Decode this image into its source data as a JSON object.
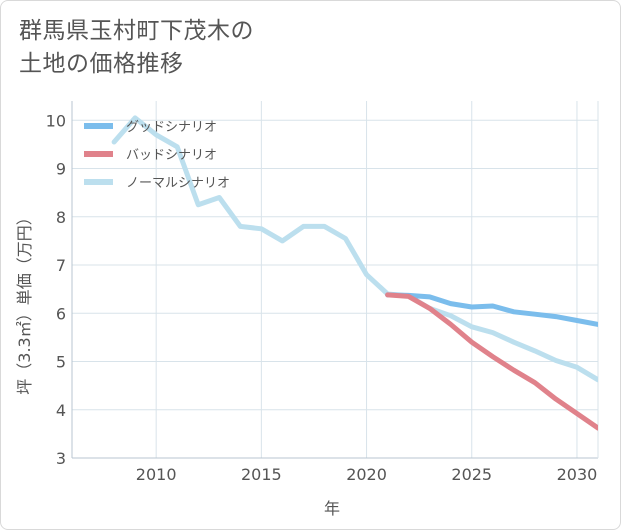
{
  "title_lines": [
    "群馬県玉村町下茂木の",
    "土地の価格推移"
  ],
  "chart_data": {
    "type": "line",
    "xlabel": "年",
    "ylabel": "坪（3.3㎡）単価（万円）",
    "xlim": [
      2006,
      2031
    ],
    "ylim": [
      3,
      10.4
    ],
    "x_ticks": [
      2010,
      2015,
      2020,
      2025,
      2030
    ],
    "y_ticks": [
      3,
      4,
      5,
      6,
      7,
      8,
      9,
      10
    ],
    "grid": true,
    "legend_position": "top-left",
    "series": [
      {
        "name": "グッドシナリオ",
        "color": "#7bbdec",
        "x": [
          2021,
          2022,
          2023,
          2024,
          2025,
          2026,
          2027,
          2028,
          2029,
          2030,
          2031
        ],
        "values": [
          6.38,
          6.37,
          6.34,
          6.2,
          6.13,
          6.15,
          6.03,
          5.98,
          5.93,
          5.85,
          5.77
        ]
      },
      {
        "name": "バッドシナリオ",
        "color": "#e0828b",
        "x": [
          2021,
          2022,
          2023,
          2024,
          2025,
          2026,
          2027,
          2028,
          2029,
          2030,
          2031
        ],
        "values": [
          6.38,
          6.35,
          6.1,
          5.77,
          5.4,
          5.1,
          4.82,
          4.56,
          4.22,
          3.92,
          3.62
        ]
      },
      {
        "name": "ノーマルシナリオ",
        "color": "#bcdfee",
        "x": [
          2008,
          2009,
          2010,
          2011,
          2012,
          2013,
          2014,
          2015,
          2016,
          2017,
          2018,
          2019,
          2020,
          2021,
          2022,
          2023,
          2024,
          2025,
          2026,
          2027,
          2028,
          2029,
          2030,
          2031
        ],
        "values": [
          9.55,
          10.05,
          9.7,
          9.45,
          8.25,
          8.4,
          7.8,
          7.75,
          7.5,
          7.8,
          7.8,
          7.55,
          6.8,
          6.4,
          6.36,
          6.1,
          5.95,
          5.72,
          5.6,
          5.4,
          5.22,
          5.02,
          4.88,
          4.62
        ]
      }
    ]
  }
}
